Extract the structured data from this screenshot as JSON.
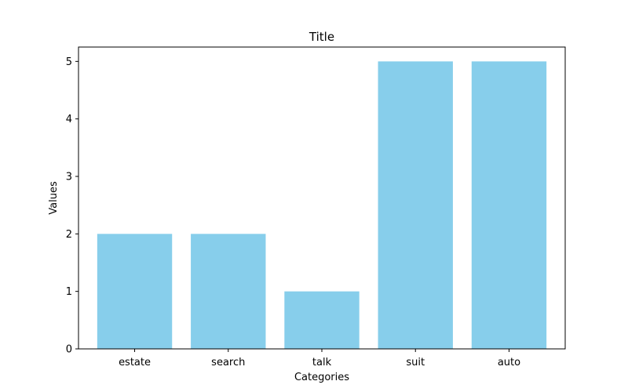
{
  "chart_data": {
    "type": "bar",
    "title": "Title",
    "xlabel": "Categories",
    "ylabel": "Values",
    "categories": [
      "estate",
      "search",
      "talk",
      "suit",
      "auto"
    ],
    "values": [
      2,
      2,
      1,
      5,
      5
    ],
    "ylim": [
      0,
      5.25
    ],
    "yticks": [
      0,
      1,
      2,
      3,
      4,
      5
    ],
    "grid": false,
    "bar_color": "#87CEEB"
  }
}
